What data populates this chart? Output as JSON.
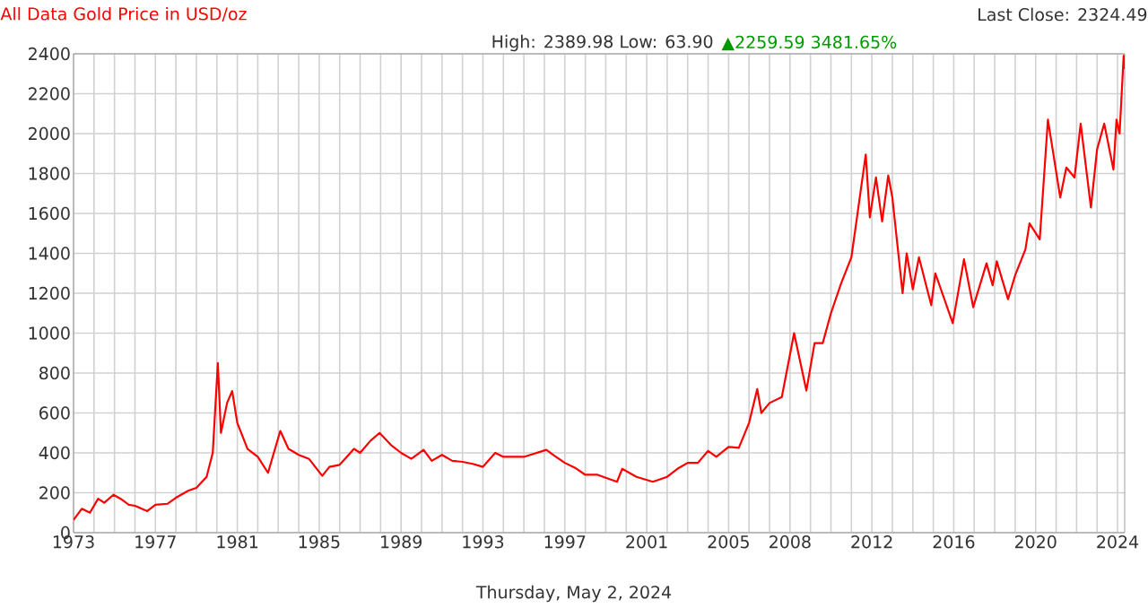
{
  "chart_data": {
    "type": "line",
    "title": "All Data Gold Price in USD/oz",
    "subtitle": "High: 2389.98 Low: 63.90",
    "annotations": [
      "▲2259.59 3481.65%",
      "Last Close: 2324.49",
      "Thursday, May 2, 2024"
    ],
    "x": [
      1973.0,
      1973.4,
      1973.8,
      1974.2,
      1974.5,
      1974.95,
      1975.3,
      1975.7,
      1976.0,
      1976.6,
      1977.0,
      1977.6,
      1978.0,
      1978.6,
      1979.0,
      1979.5,
      1979.8,
      1980.05,
      1980.2,
      1980.5,
      1980.75,
      1981.0,
      1981.5,
      1982.0,
      1982.5,
      1983.1,
      1983.5,
      1984.0,
      1984.5,
      1985.15,
      1985.5,
      1986.0,
      1986.7,
      1987.0,
      1987.5,
      1987.95,
      1988.5,
      1989.0,
      1989.5,
      1990.1,
      1990.5,
      1991.0,
      1991.5,
      1992.0,
      1992.5,
      1993.0,
      1993.6,
      1994.0,
      1995.0,
      1996.1,
      1996.5,
      1997.0,
      1997.5,
      1998.0,
      1998.6,
      1999.55,
      1999.8,
      2000.5,
      2001.3,
      2002.0,
      2002.5,
      2003.0,
      2003.5,
      2004.0,
      2004.4,
      2005.0,
      2005.5,
      2006.0,
      2006.4,
      2006.6,
      2007.0,
      2007.6,
      2008.2,
      2008.8,
      2009.2,
      2009.6,
      2010.0,
      2010.5,
      2011.0,
      2011.7,
      2011.9,
      2012.2,
      2012.5,
      2012.8,
      2013.0,
      2013.5,
      2013.7,
      2014.0,
      2014.3,
      2014.9,
      2015.1,
      2015.95,
      2016.5,
      2016.95,
      2017.6,
      2017.9,
      2018.1,
      2018.65,
      2019.0,
      2019.5,
      2019.7,
      2020.2,
      2020.6,
      2021.2,
      2021.5,
      2021.9,
      2022.2,
      2022.7,
      2023.0,
      2023.35,
      2023.8,
      2023.95,
      2024.1,
      2024.3,
      2024.33
    ],
    "series": [
      {
        "color": "#ff0000",
        "values": [
          64,
          120,
          100,
          170,
          150,
          190,
          170,
          140,
          135,
          108,
          140,
          145,
          175,
          210,
          225,
          280,
          400,
          850,
          500,
          650,
          710,
          550,
          420,
          380,
          300,
          510,
          420,
          390,
          370,
          285,
          330,
          340,
          420,
          400,
          460,
          500,
          440,
          400,
          370,
          415,
          360,
          390,
          360,
          355,
          345,
          330,
          400,
          380,
          380,
          415,
          385,
          350,
          325,
          290,
          290,
          255,
          320,
          280,
          255,
          280,
          320,
          350,
          350,
          410,
          380,
          430,
          425,
          550,
          720,
          600,
          650,
          680,
          1000,
          712,
          950,
          950,
          1100,
          1250,
          1380,
          1895,
          1580,
          1780,
          1560,
          1790,
          1680,
          1200,
          1400,
          1220,
          1380,
          1140,
          1300,
          1050,
          1370,
          1130,
          1350,
          1240,
          1360,
          1170,
          1290,
          1420,
          1550,
          1470,
          2070,
          1680,
          1830,
          1780,
          2050,
          1630,
          1920,
          2050,
          1820,
          2070,
          2000,
          2390,
          2324
        ]
      }
    ],
    "xlim": [
      1973,
      2024.35
    ],
    "xticks": [
      1973,
      {
        "value": 1974,
        "label": null
      },
      {
        "value": 1975,
        "label": null
      },
      {
        "value": 1976,
        "label": null
      },
      1977,
      {
        "value": 1978,
        "label": null
      },
      {
        "value": 1979,
        "label": null
      },
      {
        "value": 1980,
        "label": null
      },
      1981,
      {
        "value": 1982,
        "label": null
      },
      {
        "value": 1983,
        "label": null
      },
      {
        "value": 1984,
        "label": null
      },
      1985,
      {
        "value": 1986,
        "label": null
      },
      {
        "value": 1987,
        "label": null
      },
      {
        "value": 1988,
        "label": null
      },
      1989,
      {
        "value": 1990,
        "label": null
      },
      {
        "value": 1991,
        "label": null
      },
      {
        "value": 1992,
        "label": null
      },
      1993,
      {
        "value": 1994,
        "label": null
      },
      {
        "value": 1995,
        "label": null
      },
      {
        "value": 1996,
        "label": null
      },
      1997,
      {
        "value": 1998,
        "label": null
      },
      {
        "value": 1999,
        "label": null
      },
      {
        "value": 2000,
        "label": null
      },
      2001,
      {
        "value": 2002,
        "label": null
      },
      {
        "value": 2003,
        "label": null
      },
      {
        "value": 2004,
        "label": null
      },
      2005,
      {
        "value": 2006,
        "label": null
      },
      {
        "value": 2007,
        "label": null
      },
      2008,
      {
        "value": 2009,
        "label": null
      },
      {
        "value": 2010,
        "label": null
      },
      {
        "value": 2011,
        "label": null
      },
      2012,
      {
        "value": 2013,
        "label": null
      },
      {
        "value": 2014,
        "label": null
      },
      {
        "value": 2015,
        "label": null
      },
      2016,
      {
        "value": 2017,
        "label": null
      },
      {
        "value": 2018,
        "label": null
      },
      {
        "value": 2019,
        "label": null
      },
      2020,
      {
        "value": 2021,
        "label": null
      },
      {
        "value": 2022,
        "label": null
      },
      {
        "value": 2023,
        "label": null
      },
      2024
    ],
    "ylim": [
      0,
      2400
    ],
    "yticks": [
      0,
      200,
      400,
      600,
      800,
      1000,
      1200,
      1400,
      1600,
      1800,
      2000,
      2200,
      2400
    ],
    "grid": true,
    "marker": "none",
    "line_style": "solid"
  }
}
